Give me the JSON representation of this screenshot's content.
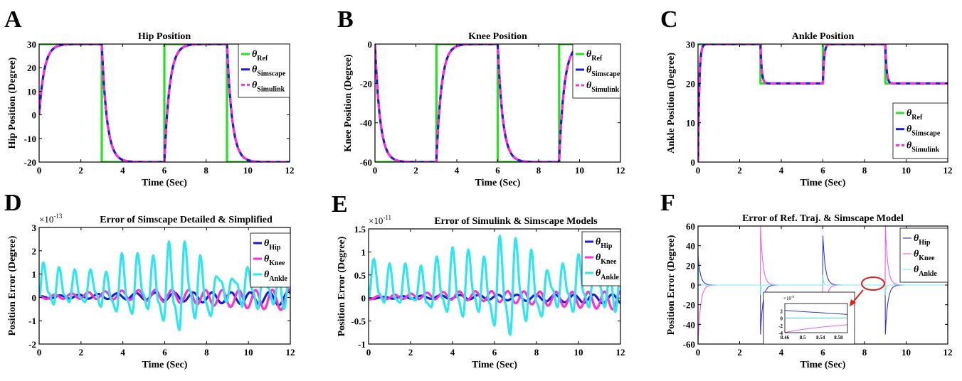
{
  "panel_letters": [
    "A",
    "B",
    "C",
    "D",
    "E",
    "F"
  ],
  "chart_data": [
    {
      "panel": "A",
      "type": "line",
      "title": "Hip Position",
      "xlabel": "Time (Sec)",
      "ylabel": "Hip Position (Degree)",
      "xlim": [
        0,
        12
      ],
      "ylim": [
        -20,
        30
      ],
      "xticks": [
        0,
        2,
        4,
        6,
        8,
        10,
        12
      ],
      "yticks": [
        -20,
        -10,
        0,
        10,
        20,
        30
      ],
      "legend": "top-right",
      "series": [
        {
          "sym": "θ",
          "sub": "Ref",
          "color": "#22e31c",
          "style": "step",
          "t0": 0,
          "v0": 30,
          "steps": [
            [
              3,
              -20
            ],
            [
              6,
              30
            ],
            [
              9,
              -20
            ]
          ]
        },
        {
          "sym": "θ",
          "sub": "Simscape",
          "color": "#1c1cd6",
          "style": "exp",
          "t0": 0,
          "v0": 0,
          "tau": 0.25,
          "steps": [
            [
              0,
              30
            ],
            [
              3,
              -20
            ],
            [
              6,
              30
            ],
            [
              9,
              -20
            ]
          ]
        },
        {
          "sym": "θ",
          "sub": "Simulink",
          "color": "#ff2fd4",
          "style": "exp-dash",
          "t0": 0,
          "v0": 0,
          "tau": 0.25,
          "steps": [
            [
              0,
              30
            ],
            [
              3,
              -20
            ],
            [
              6,
              30
            ],
            [
              9,
              -20
            ]
          ]
        }
      ]
    },
    {
      "panel": "B",
      "type": "line",
      "title": "Knee Position",
      "xlabel": "Time (Sec)",
      "ylabel": "Knee Position (Degree)",
      "xlim": [
        0,
        12
      ],
      "ylim": [
        -60,
        0
      ],
      "xticks": [
        0,
        2,
        4,
        6,
        8,
        10,
        12
      ],
      "yticks": [
        -60,
        -40,
        -20,
        0
      ],
      "legend": "top-right",
      "series": [
        {
          "sym": "θ",
          "sub": "Ref",
          "color": "#22e31c",
          "style": "step",
          "t0": 0,
          "v0": -60,
          "steps": [
            [
              3,
              0
            ],
            [
              6,
              -60
            ],
            [
              9,
              0
            ]
          ]
        },
        {
          "sym": "θ",
          "sub": "Simscape",
          "color": "#1c1cd6",
          "style": "exp",
          "t0": 0,
          "v0": 0,
          "tau": 0.25,
          "steps": [
            [
              0,
              -60
            ],
            [
              3,
              0
            ],
            [
              6,
              -60
            ],
            [
              9,
              0
            ]
          ]
        },
        {
          "sym": "θ",
          "sub": "Simulink",
          "color": "#ff2fd4",
          "style": "exp-dash",
          "t0": 0,
          "v0": 0,
          "tau": 0.25,
          "steps": [
            [
              0,
              -60
            ],
            [
              3,
              0
            ],
            [
              6,
              -60
            ],
            [
              9,
              0
            ]
          ]
        }
      ]
    },
    {
      "panel": "C",
      "type": "line",
      "title": "Ankle Position",
      "xlabel": "Time (Sec)",
      "ylabel": "Ankle Position (Degree)",
      "xlim": [
        0,
        12
      ],
      "ylim": [
        0,
        30
      ],
      "xticks": [
        0,
        2,
        4,
        6,
        8,
        10,
        12
      ],
      "yticks": [
        0,
        10,
        20,
        30
      ],
      "legend": "bottom-right",
      "series": [
        {
          "sym": "θ",
          "sub": "Ref",
          "color": "#22e31c",
          "style": "step",
          "t0": 0,
          "v0": 30,
          "steps": [
            [
              3,
              20
            ],
            [
              6,
              30
            ],
            [
              9,
              20
            ]
          ]
        },
        {
          "sym": "θ",
          "sub": "Simscape",
          "color": "#1c1cd6",
          "style": "exp",
          "t0": 0,
          "v0": 0,
          "tau": 0.06,
          "steps": [
            [
              0,
              30
            ],
            [
              3,
              20
            ],
            [
              6,
              30
            ],
            [
              9,
              20
            ]
          ]
        },
        {
          "sym": "θ",
          "sub": "Simulink",
          "color": "#ff2fd4",
          "style": "exp-dash",
          "t0": 0,
          "v0": 0,
          "tau": 0.06,
          "steps": [
            [
              0,
              30
            ],
            [
              3,
              20
            ],
            [
              6,
              30
            ],
            [
              9,
              20
            ]
          ]
        }
      ]
    },
    {
      "panel": "D",
      "type": "line",
      "title": "Error of Simscape Detailed & Simplified",
      "scale_base": "×10",
      "scale_exp": "-13",
      "xlabel": "Time (Sec)",
      "ylabel": "Position Error (Degree)",
      "xlim": [
        0,
        12
      ],
      "ylim": [
        -2,
        3
      ],
      "xticks": [
        0,
        2,
        4,
        6,
        8,
        10,
        12
      ],
      "yticks": [
        -2,
        -1,
        0,
        1,
        2,
        3
      ],
      "legend": "top-right",
      "series": [
        {
          "sym": "θ",
          "sub": "Hip",
          "color": "#1c1cd6",
          "style": "osc",
          "seed": 1,
          "base": 0.05,
          "amp": 0.3,
          "freq": 1.1
        },
        {
          "sym": "θ",
          "sub": "Knee",
          "color": "#ff2fd4",
          "style": "osc",
          "seed": 2,
          "base": 0.1,
          "amp": 0.45,
          "freq": 1.25
        },
        {
          "sym": "θ",
          "sub": "Ankle",
          "color": "#2ee6f2",
          "style": "peaks",
          "x": [
            0,
            0.2,
            0.45,
            0.7,
            0.95,
            1.2,
            1.45,
            1.7,
            1.95,
            2.2,
            2.45,
            2.7,
            2.95,
            3.2,
            3.45,
            3.7,
            3.95,
            4.2,
            4.45,
            4.7,
            4.95,
            5.2,
            5.45,
            5.7,
            5.95,
            6.2,
            6.45,
            6.7,
            6.95,
            7.2,
            7.45,
            7.7,
            7.95,
            8.2,
            8.45,
            8.7,
            8.95,
            9.2,
            9.45,
            9.7,
            9.95,
            10.2,
            10.45,
            10.7,
            10.95,
            11.2,
            11.45,
            11.7,
            12
          ],
          "y": [
            0,
            1.5,
            0.2,
            -0.3,
            1.3,
            0.1,
            -0.2,
            1.2,
            0,
            -0.2,
            1.2,
            0.2,
            -0.4,
            1.1,
            -0.1,
            -0.6,
            1.9,
            -0.1,
            -0.7,
            1.9,
            0.2,
            -0.5,
            1.8,
            -0.2,
            -1.0,
            2.4,
            -0.3,
            -1.4,
            2.4,
            0.3,
            -0.9,
            1.8,
            -0.2,
            -0.8,
            0.9,
            0.7,
            -0.2,
            0.8,
            0.6,
            -0.4,
            1.3,
            0.3,
            -0.5,
            1.0,
            0.4,
            -0.3,
            0.9,
            -0.5,
            1.4
          ]
        }
      ]
    },
    {
      "panel": "E",
      "type": "line",
      "title": "Error of Simulink & Simscape Models",
      "scale_base": "×10",
      "scale_exp": "-11",
      "xlabel": "Time (Sec)",
      "ylabel": "Position Error (Degree)",
      "xlim": [
        0,
        12
      ],
      "ylim": [
        -1,
        1.5
      ],
      "xticks": [
        0,
        2,
        4,
        6,
        8,
        10,
        12
      ],
      "yticks": [
        -1,
        -0.5,
        0,
        0.5,
        1,
        1.5
      ],
      "legend": "top-right",
      "series": [
        {
          "sym": "θ",
          "sub": "Hip",
          "color": "#1c1cd6",
          "style": "osc",
          "seed": 3,
          "base": 0.02,
          "amp": 0.1,
          "freq": 1.1
        },
        {
          "sym": "θ",
          "sub": "Knee",
          "color": "#ff2fd4",
          "style": "osc",
          "seed": 4,
          "base": 0.05,
          "amp": 0.2,
          "freq": 1.3
        },
        {
          "sym": "θ",
          "sub": "Ankle",
          "color": "#2ee6f2",
          "style": "peaks",
          "x": [
            0,
            0.25,
            0.5,
            0.75,
            1.0,
            1.25,
            1.5,
            1.75,
            2.0,
            2.25,
            2.5,
            2.75,
            3.0,
            3.25,
            3.5,
            3.75,
            4.0,
            4.25,
            4.5,
            4.75,
            5.0,
            5.25,
            5.5,
            5.75,
            6.0,
            6.25,
            6.5,
            6.75,
            7.0,
            7.25,
            7.5,
            7.75,
            8.0,
            8.25,
            8.5,
            8.75,
            9.0,
            9.25,
            9.5,
            9.75,
            10.0,
            10.25,
            10.5,
            10.75,
            11.0,
            11.25,
            11.5,
            11.75,
            12
          ],
          "y": [
            0,
            0.85,
            0.1,
            -0.1,
            0.75,
            0,
            -0.1,
            0.75,
            0,
            -0.05,
            0.7,
            -0.1,
            -0.2,
            0.9,
            0,
            -0.3,
            1.1,
            0,
            -0.4,
            1.05,
            0.1,
            -0.3,
            0.9,
            -0.1,
            -0.6,
            1.35,
            -0.1,
            -0.8,
            1.3,
            0.1,
            -0.5,
            1.05,
            -0.1,
            -0.4,
            0.6,
            0.2,
            -0.2,
            0.75,
            0.1,
            -0.3,
            0.95,
            0.1,
            -0.2,
            0.7,
            0.3,
            -0.2,
            0.55,
            -0.3,
            0.5
          ]
        }
      ]
    },
    {
      "panel": "F",
      "type": "line",
      "title": "Error of Ref. Traj. & Simscape Model",
      "xlabel": "Time (Sec)",
      "ylabel": "Position Error (Degree)",
      "xlim": [
        0,
        12
      ],
      "ylim": [
        -60,
        60
      ],
      "xticks": [
        0,
        2,
        4,
        6,
        8,
        10,
        12
      ],
      "yticks": [
        -60,
        -40,
        -20,
        0,
        20,
        40,
        60
      ],
      "legend": "top-right",
      "series": [
        {
          "sym": "θ",
          "sub": "Hip",
          "color": "#3434e0",
          "style": "spikes",
          "tau": 0.12,
          "events": [
            [
              0,
              30
            ],
            [
              3,
              -50
            ],
            [
              6,
              50
            ],
            [
              9,
              -50
            ]
          ]
        },
        {
          "sym": "θ",
          "sub": "Knee",
          "color": "#f060e6",
          "style": "spikes",
          "tau": 0.12,
          "events": [
            [
              0,
              -60
            ],
            [
              3,
              60
            ],
            [
              6,
              -60
            ],
            [
              9,
              60
            ]
          ]
        },
        {
          "sym": "θ",
          "sub": "Ankle",
          "color": "#7ae9f2",
          "style": "spikes",
          "tau": 0.03,
          "events": [
            [
              0,
              30
            ],
            [
              3,
              -10
            ],
            [
              6,
              10
            ],
            [
              9,
              -10
            ]
          ]
        }
      ],
      "inset": {
        "scale_base": "×10",
        "scale_exp": "-6",
        "xlim": [
          8.46,
          8.6
        ],
        "ylim": [
          -4,
          4
        ],
        "xticks": [
          "8.46",
          "8.5",
          "8.54",
          "8.58"
        ],
        "yticks": [
          "-4",
          "-2",
          "0",
          "2"
        ],
        "lines": [
          {
            "color": "#3434e0",
            "x": [
              8.46,
              8.6
            ],
            "y": [
              2.1,
              1.0
            ]
          },
          {
            "color": "#f060e6",
            "x": [
              8.46,
              8.5,
              8.54,
              8.6
            ],
            "y": [
              -3.9,
              -3.1,
              -2.5,
              -1.8
            ]
          },
          {
            "color": "#2ee6f2",
            "x": [
              8.46,
              8.6
            ],
            "y": [
              0,
              0
            ]
          }
        ]
      }
    }
  ]
}
